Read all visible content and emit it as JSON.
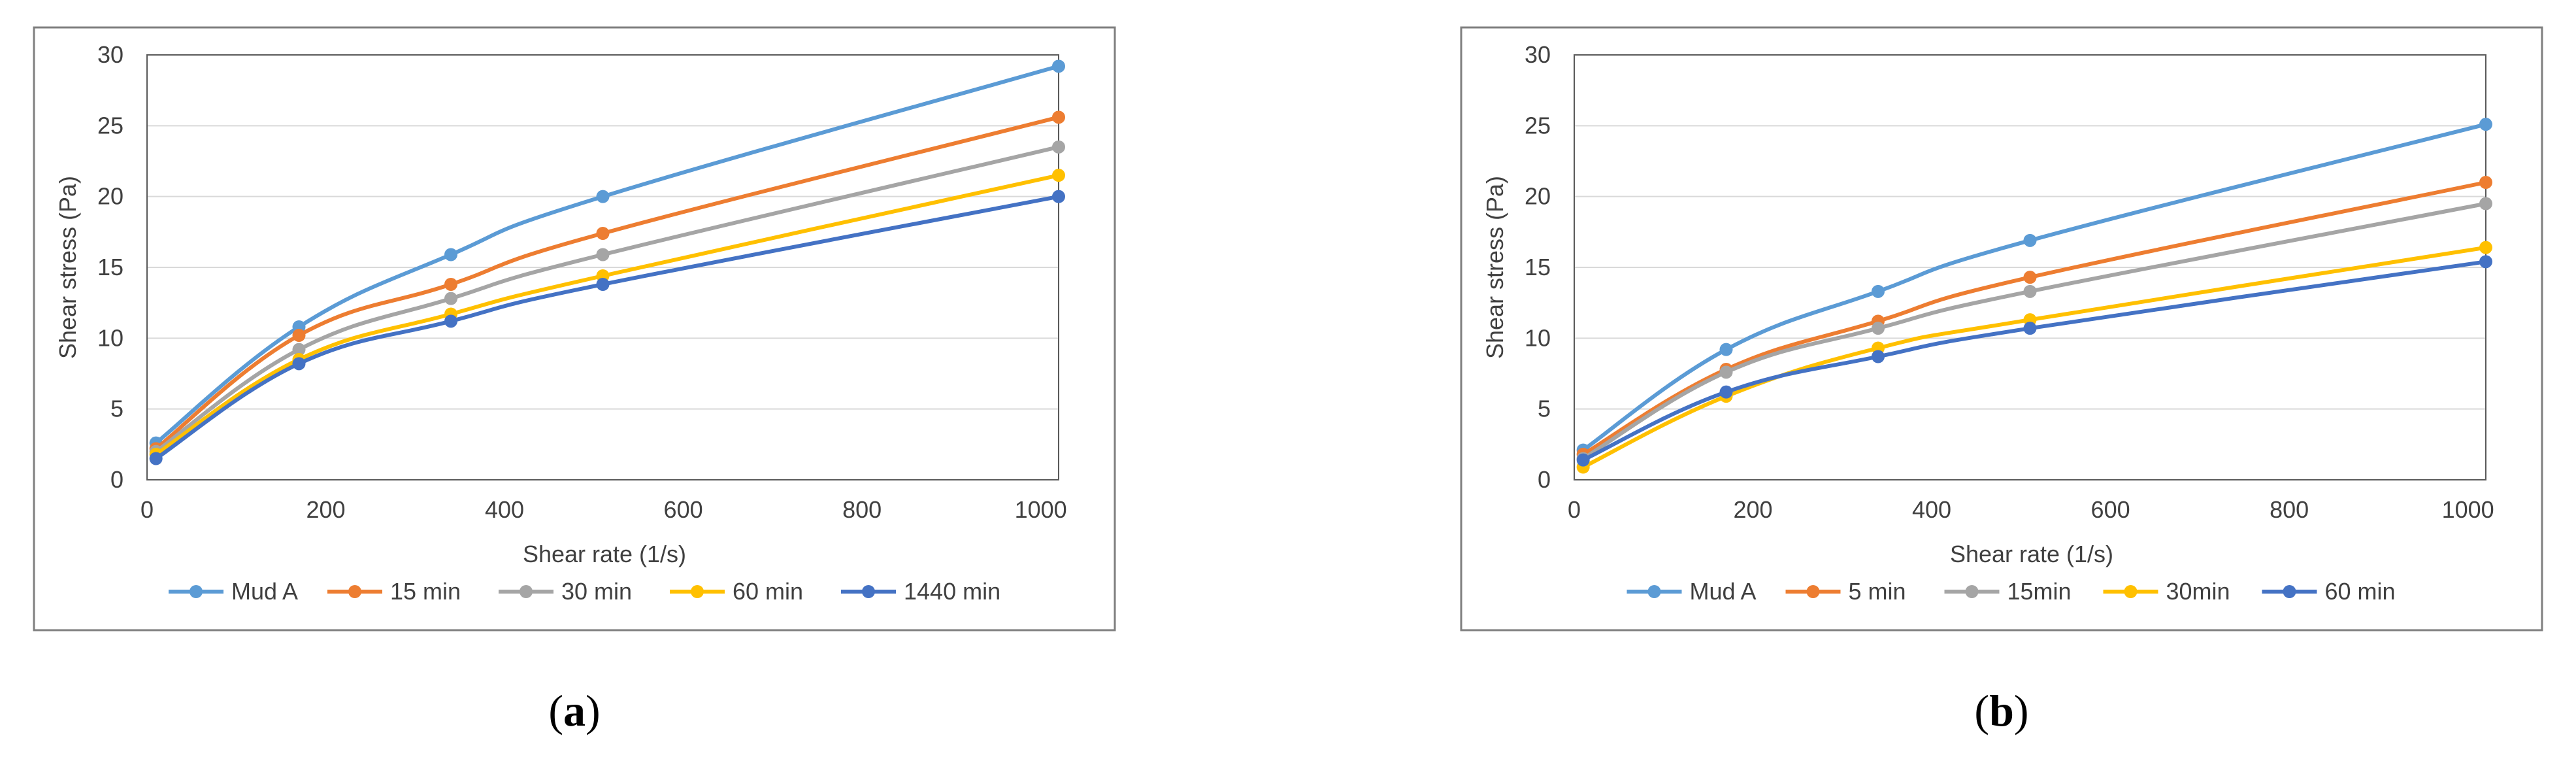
{
  "chart_data": [
    {
      "type": "line",
      "caption_letter": "a",
      "x": [
        10,
        170,
        340,
        510,
        1020
      ],
      "xlabel": "Shear rate (1/s)",
      "ylabel": "Shear stress (Pa)",
      "xlim": [
        0,
        1020
      ],
      "ylim": [
        0,
        30
      ],
      "xticks": [
        0,
        200,
        400,
        600,
        800,
        1000
      ],
      "yticks": [
        0,
        5,
        10,
        15,
        20,
        25,
        30
      ],
      "grid": true,
      "legend_position": "bottom",
      "series": [
        {
          "name": "Mud A",
          "color": "#5B9BD5",
          "values": [
            2.6,
            10.8,
            15.9,
            20.0,
            29.2
          ]
        },
        {
          "name": "15 min",
          "color": "#ED7D31",
          "values": [
            2.2,
            10.2,
            13.8,
            17.4,
            25.6
          ]
        },
        {
          "name": "30 min",
          "color": "#A5A5A5",
          "values": [
            2.0,
            9.2,
            12.8,
            15.9,
            23.5
          ]
        },
        {
          "name": "60 min",
          "color": "#FFC000",
          "values": [
            1.8,
            8.5,
            11.7,
            14.4,
            21.5
          ]
        },
        {
          "name": "1440 min",
          "color": "#4472C4",
          "values": [
            1.5,
            8.2,
            11.2,
            13.8,
            20.0
          ]
        }
      ]
    },
    {
      "type": "line",
      "caption_letter": "b",
      "x": [
        10,
        170,
        340,
        510,
        1020
      ],
      "xlabel": "Shear rate (1/s)",
      "ylabel": "Shear stress (Pa)",
      "xlim": [
        0,
        1020
      ],
      "ylim": [
        0,
        30
      ],
      "xticks": [
        0,
        200,
        400,
        600,
        800,
        1000
      ],
      "yticks": [
        0,
        5,
        10,
        15,
        20,
        25,
        30
      ],
      "grid": true,
      "legend_position": "bottom",
      "series": [
        {
          "name": "Mud A",
          "color": "#5B9BD5",
          "values": [
            2.1,
            9.2,
            13.3,
            16.9,
            25.1
          ]
        },
        {
          "name": "5 min",
          "color": "#ED7D31",
          "values": [
            1.8,
            7.8,
            11.2,
            14.3,
            21.0
          ]
        },
        {
          "name": "15min",
          "color": "#A5A5A5",
          "values": [
            1.5,
            7.6,
            10.7,
            13.3,
            19.5
          ]
        },
        {
          "name": "30min",
          "color": "#FFC000",
          "values": [
            0.9,
            5.9,
            9.3,
            11.3,
            16.4
          ]
        },
        {
          "name": "60 min",
          "color": "#4472C4",
          "values": [
            1.4,
            6.2,
            8.7,
            10.7,
            15.4
          ]
        }
      ]
    }
  ]
}
